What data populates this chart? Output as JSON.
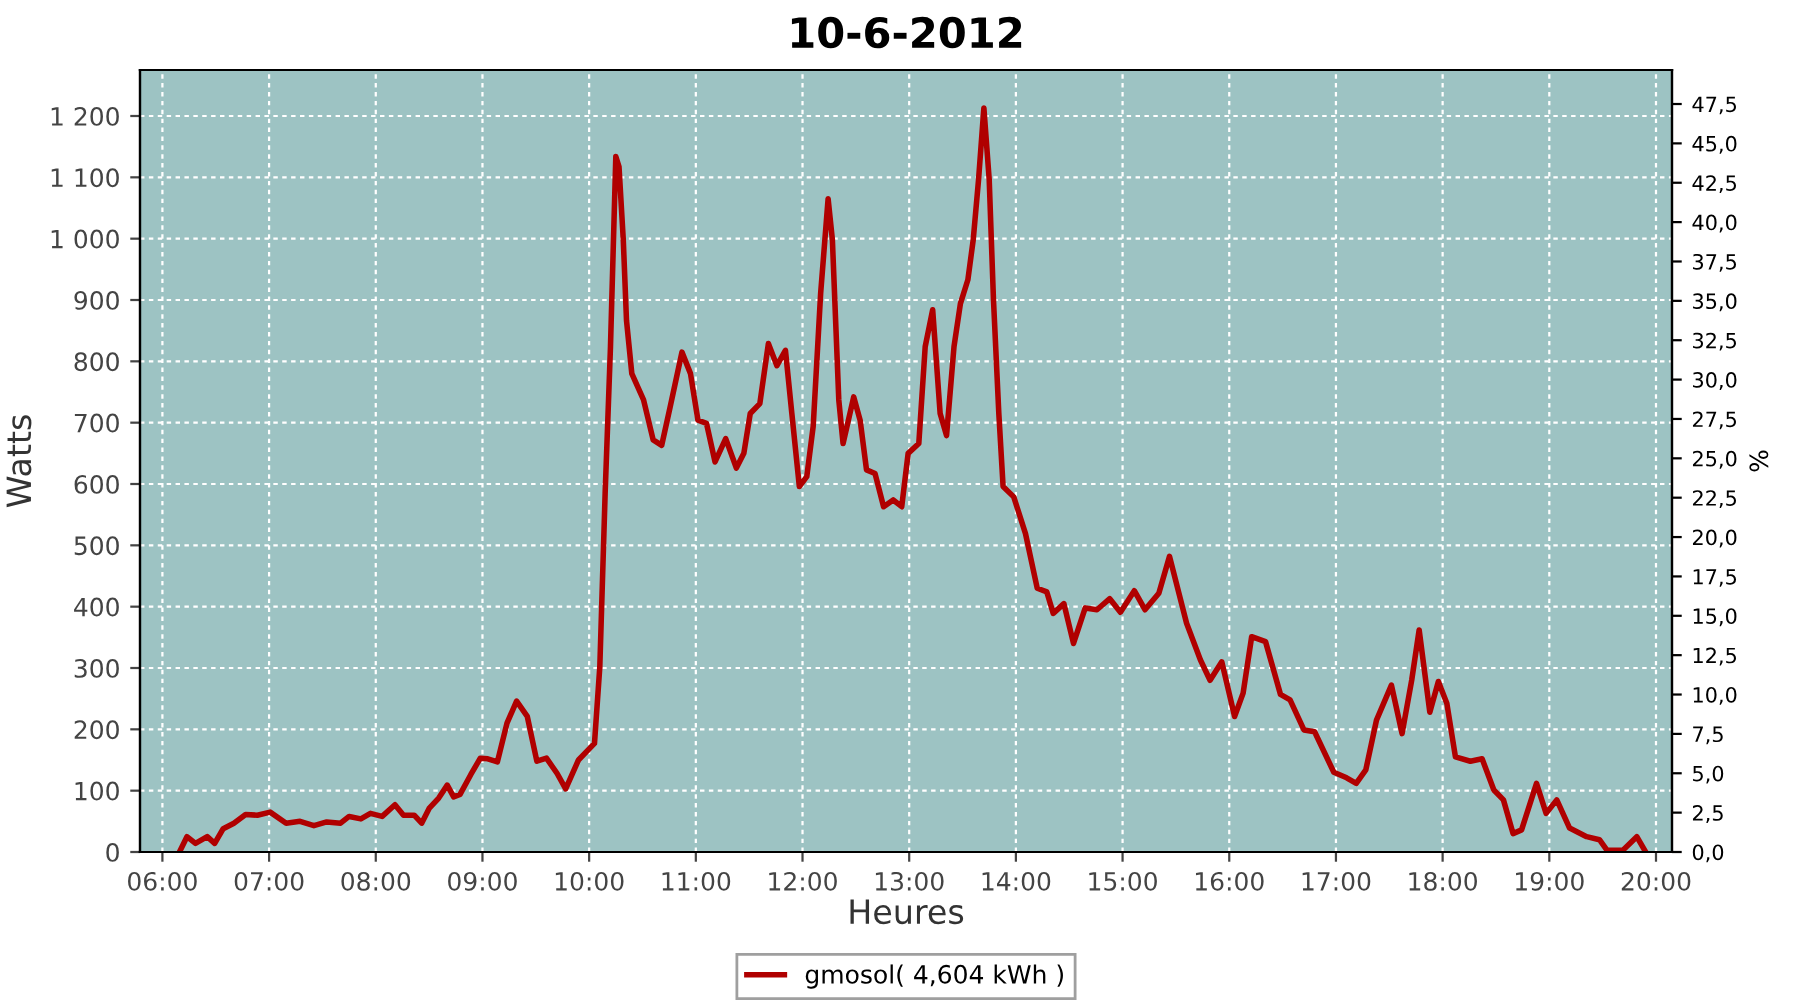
{
  "chart_data": {
    "type": "line",
    "title": "10-6-2012",
    "xlabel": "Heures",
    "ylabel": "Watts",
    "y2label": "%",
    "x": [
      6.16,
      6.23,
      6.31,
      6.42,
      6.49,
      6.57,
      6.67,
      6.78,
      6.89,
      7.01,
      7.16,
      7.29,
      7.42,
      7.54,
      7.67,
      7.75,
      7.86,
      7.95,
      8.06,
      8.18,
      8.26,
      8.36,
      8.43,
      8.5,
      8.59,
      8.67,
      8.73,
      8.79,
      8.89,
      8.98,
      9.05,
      9.14,
      9.23,
      9.32,
      9.42,
      9.51,
      9.6,
      9.7,
      9.78,
      9.9,
      10.05,
      10.1,
      10.15,
      10.2,
      10.25,
      10.28,
      10.32,
      10.35,
      10.4,
      10.51,
      10.6,
      10.68,
      10.76,
      10.87,
      10.95,
      11.02,
      11.1,
      11.18,
      11.28,
      11.38,
      11.45,
      11.51,
      11.6,
      11.68,
      11.76,
      11.84,
      11.9,
      11.97,
      12.04,
      12.1,
      12.17,
      12.24,
      12.28,
      12.34,
      12.38,
      12.48,
      12.54,
      12.6,
      12.68,
      12.76,
      12.85,
      12.93,
      12.99,
      13.09,
      13.15,
      13.22,
      13.29,
      13.35,
      13.42,
      13.48,
      13.55,
      13.6,
      13.65,
      13.7,
      13.75,
      13.79,
      13.84,
      13.88,
      13.98,
      14.09,
      14.2,
      14.29,
      14.35,
      14.45,
      14.54,
      14.65,
      14.76,
      14.88,
      14.98,
      15.11,
      15.21,
      15.34,
      15.44,
      15.6,
      15.73,
      15.82,
      15.93,
      16.05,
      16.13,
      16.21,
      16.34,
      16.48,
      16.57,
      16.7,
      16.8,
      16.98,
      17.1,
      17.19,
      17.28,
      17.38,
      17.52,
      17.62,
      17.71,
      17.78,
      17.88,
      17.96,
      18.04,
      18.12,
      18.26,
      18.37,
      18.48,
      18.57,
      18.66,
      18.74,
      18.88,
      18.97,
      19.07,
      19.19,
      19.35,
      19.47,
      19.54,
      19.69,
      19.82,
      19.9
    ],
    "series": [
      {
        "name": "gmosol( 4,604 kWh )",
        "color": "#b00000",
        "values": [
          0,
          25,
          14,
          25,
          14,
          38,
          47,
          61,
          60,
          65,
          47,
          50,
          43,
          49,
          47,
          58,
          54,
          63,
          58,
          77,
          60,
          60,
          47,
          71,
          88,
          109,
          90,
          94,
          126,
          153,
          152,
          147,
          210,
          246,
          221,
          148,
          153,
          128,
          103,
          150,
          177,
          302,
          585,
          824,
          1134,
          1117,
          998,
          867,
          780,
          737,
          672,
          663,
          726,
          815,
          780,
          704,
          699,
          636,
          674,
          626,
          650,
          715,
          731,
          829,
          793,
          818,
          715,
          596,
          612,
          694,
          911,
          1065,
          998,
          737,
          666,
          742,
          704,
          623,
          617,
          563,
          574,
          563,
          650,
          666,
          824,
          884,
          715,
          679,
          824,
          894,
          933,
          998,
          1096,
          1213,
          1096,
          900,
          715,
          596,
          579,
          519,
          430,
          424,
          389,
          405,
          340,
          398,
          395,
          413,
          391,
          426,
          395,
          422,
          482,
          373,
          313,
          280,
          310,
          221,
          259,
          351,
          343,
          257,
          248,
          199,
          196,
          130,
          121,
          112,
          134,
          215,
          272,
          193,
          280,
          362,
          228,
          278,
          242,
          155,
          148,
          152,
          101,
          85,
          30,
          36,
          112,
          63,
          85,
          39,
          25,
          20,
          3,
          3,
          25,
          1
        ]
      }
    ],
    "xlim": [
      5.79,
      20.15
    ],
    "xticks": [
      {
        "value": 6,
        "label": "06:00"
      },
      {
        "value": 7,
        "label": "07:00"
      },
      {
        "value": 8,
        "label": "08:00"
      },
      {
        "value": 9,
        "label": "09:00"
      },
      {
        "value": 10,
        "label": "10:00"
      },
      {
        "value": 11,
        "label": "11:00"
      },
      {
        "value": 12,
        "label": "12:00"
      },
      {
        "value": 13,
        "label": "13:00"
      },
      {
        "value": 14,
        "label": "14:00"
      },
      {
        "value": 15,
        "label": "15:00"
      },
      {
        "value": 16,
        "label": "16:00"
      },
      {
        "value": 17,
        "label": "17:00"
      },
      {
        "value": 18,
        "label": "18:00"
      },
      {
        "value": 19,
        "label": "19:00"
      },
      {
        "value": 20,
        "label": "20:00"
      }
    ],
    "ylim": [
      0,
      1275
    ],
    "yticks": [
      0,
      100,
      200,
      300,
      400,
      500,
      600,
      700,
      800,
      900,
      {
        "value": 1000,
        "label": "1 000"
      },
      {
        "value": 1100,
        "label": "1 100"
      },
      {
        "value": 1200,
        "label": "1 200"
      }
    ],
    "y2lim": [
      0,
      49.66
    ],
    "y2ticks": [
      {
        "value": 0,
        "label": "0,0"
      },
      {
        "value": 2.5,
        "label": "2,5"
      },
      {
        "value": 5,
        "label": "5,0"
      },
      {
        "value": 7.5,
        "label": "7,5"
      },
      {
        "value": 10,
        "label": "10,0"
      },
      {
        "value": 12.5,
        "label": "12,5"
      },
      {
        "value": 15,
        "label": "15,0"
      },
      {
        "value": 17.5,
        "label": "17,5"
      },
      {
        "value": 20,
        "label": "20,0"
      },
      {
        "value": 22.5,
        "label": "22,5"
      },
      {
        "value": 25,
        "label": "25,0"
      },
      {
        "value": 27.5,
        "label": "27,5"
      },
      {
        "value": 30,
        "label": "30,0"
      },
      {
        "value": 32.5,
        "label": "32,5"
      },
      {
        "value": 35,
        "label": "35,0"
      },
      {
        "value": 37.5,
        "label": "37,5"
      },
      {
        "value": 40,
        "label": "40,0"
      },
      {
        "value": 42.5,
        "label": "42,5"
      },
      {
        "value": 45,
        "label": "45,0"
      },
      {
        "value": 47.5,
        "label": "47,5"
      }
    ],
    "grid": true,
    "legend": "bottom",
    "marker": "none",
    "line_style": "solid"
  }
}
